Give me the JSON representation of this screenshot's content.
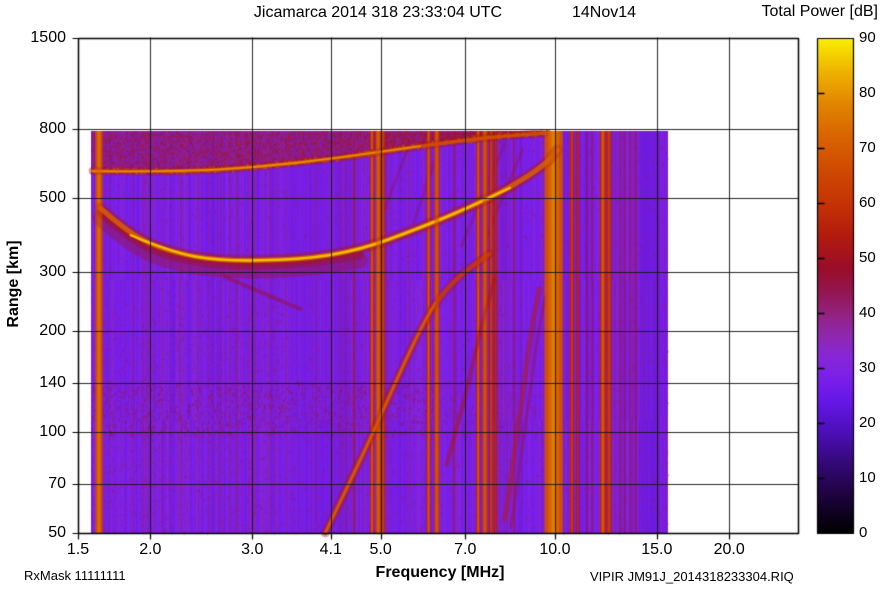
{
  "header": {
    "title": "Jicamarca 2014 318 23:33:04 UTC",
    "date_label": "14Nov14",
    "colorbar_title": "Total Power [dB]"
  },
  "footer": {
    "rx_mask": "RxMask 11111111",
    "xlabel": "Frequency [MHz]",
    "file_label": "VIPIR  JM91J_2014318233304.RIQ"
  },
  "ylabel": "Range [km]",
  "chart_data": {
    "type": "heatmap",
    "title": "Jicamarca 2014 318 23:33:04 UTC",
    "date_label": "14Nov14",
    "xlabel": "Frequency [MHz]",
    "ylabel": "Range [km]",
    "colorbar_label": "Total Power [dB]",
    "x_scale": "log",
    "y_scale": "log",
    "xlim": [
      1.5,
      26.3
    ],
    "ylim": [
      50,
      1500
    ],
    "grid": true,
    "x_ticks": [
      {
        "label": "1.5",
        "value": 1.5
      },
      {
        "label": "2.0",
        "value": 2.0
      },
      {
        "label": "3.0",
        "value": 3.0
      },
      {
        "label": "4.1",
        "value": 4.1
      },
      {
        "label": "5.0",
        "value": 5.0
      },
      {
        "label": "7.0",
        "value": 7.0
      },
      {
        "label": "10.0",
        "value": 10.0
      },
      {
        "label": "15.0",
        "value": 15.0
      },
      {
        "label": "20.0",
        "value": 20.0
      }
    ],
    "y_ticks": [
      {
        "label": "1500",
        "value": 1500
      },
      {
        "label": "800",
        "value": 800
      },
      {
        "label": "500",
        "value": 500
      },
      {
        "label": "300",
        "value": 300
      },
      {
        "label": "200",
        "value": 200
      },
      {
        "label": "140",
        "value": 140
      },
      {
        "label": "100",
        "value": 100
      },
      {
        "label": "70",
        "value": 70
      },
      {
        "label": "50",
        "value": 50
      }
    ],
    "colorbar": {
      "min": 0,
      "max": 90,
      "tick_labels": [
        "90",
        "80",
        "70",
        "60",
        "50",
        "40",
        "30",
        "20",
        "10",
        "0"
      ],
      "tick_values": [
        90,
        80,
        70,
        60,
        50,
        40,
        30,
        20,
        10,
        0
      ],
      "stops": [
        {
          "v": 0,
          "c": "#000000"
        },
        {
          "v": 6,
          "c": "#1a0336"
        },
        {
          "v": 12,
          "c": "#320870"
        },
        {
          "v": 18,
          "c": "#4a0fb4"
        },
        {
          "v": 24,
          "c": "#6617e8"
        },
        {
          "v": 28,
          "c": "#7a1fea"
        },
        {
          "v": 32,
          "c": "#8727d8"
        },
        {
          "v": 36,
          "c": "#8f28ae"
        },
        {
          "v": 40,
          "c": "#93227e"
        },
        {
          "v": 44,
          "c": "#941650"
        },
        {
          "v": 48,
          "c": "#9a0d2a"
        },
        {
          "v": 54,
          "c": "#b31b0e"
        },
        {
          "v": 60,
          "c": "#c63305"
        },
        {
          "v": 66,
          "c": "#cf4a02"
        },
        {
          "v": 72,
          "c": "#d96400"
        },
        {
          "v": 78,
          "c": "#e28500"
        },
        {
          "v": 84,
          "c": "#f0b400"
        },
        {
          "v": 90,
          "c": "#f9ef00"
        }
      ]
    },
    "data_extent": {
      "f_min": 1.58,
      "f_max": 15.7,
      "r_min": 50,
      "r_max": 792
    },
    "background_db": 28,
    "bands": [
      {
        "name": "spread-f-band",
        "f_min": 1.58,
        "f_max": 9.8,
        "r_top": 792,
        "db": 42,
        "lower_edge": [
          [
            1.59,
            601
          ],
          [
            2.25,
            598
          ],
          [
            3.08,
            618
          ],
          [
            4.24,
            658
          ],
          [
            5.85,
            714
          ],
          [
            8.03,
            765
          ],
          [
            9.6,
            779
          ]
        ]
      },
      {
        "name": "e-region-band",
        "f_min": 1.58,
        "f_max": 6.3,
        "r_min": 98,
        "r_max": 142,
        "db": 40
      }
    ],
    "traces": [
      {
        "name": "spread-f-lower-edge-arc",
        "db": 80,
        "points": [
          [
            1.59,
            601
          ],
          [
            2.25,
            598
          ],
          [
            3.08,
            618
          ],
          [
            4.24,
            658
          ],
          [
            5.85,
            714
          ],
          [
            8.03,
            765
          ],
          [
            9.6,
            779
          ]
        ]
      },
      {
        "name": "f-region-main-trace",
        "db": 86,
        "points": [
          [
            1.64,
            466
          ],
          [
            1.85,
            387
          ],
          [
            2.16,
            345
          ],
          [
            2.64,
            324
          ],
          [
            3.63,
            327
          ],
          [
            4.6,
            349
          ],
          [
            5.85,
            407
          ],
          [
            7.13,
            469
          ],
          [
            8.36,
            536
          ],
          [
            9.6,
            627
          ],
          [
            10.1,
            694
          ]
        ]
      },
      {
        "name": "oblique-trace",
        "db": 72,
        "points": [
          [
            4.01,
            50
          ],
          [
            4.44,
            72
          ],
          [
            4.92,
            105
          ],
          [
            5.42,
            153
          ],
          [
            5.85,
            202
          ],
          [
            6.21,
            243
          ],
          [
            6.84,
            294
          ],
          [
            7.7,
            340
          ]
        ]
      },
      {
        "name": "oblique-faint-1",
        "db": 52,
        "points": [
          [
            6.5,
            80
          ],
          [
            6.98,
            124
          ],
          [
            7.43,
            202
          ],
          [
            7.86,
            285
          ]
        ]
      },
      {
        "name": "oblique-faint-2",
        "db": 54,
        "points": [
          [
            8.2,
            55
          ],
          [
            8.68,
            109
          ],
          [
            9.1,
            202
          ],
          [
            9.4,
            268
          ]
        ]
      },
      {
        "name": "sub-trace-streak",
        "db": 48,
        "points": [
          [
            2.7,
            290
          ],
          [
            3.63,
            233
          ]
        ]
      }
    ],
    "streaks": [
      {
        "name": "upper-streak-1",
        "db": 48,
        "points": [
          [
            5.6,
            720
          ],
          [
            5.0,
            430
          ]
        ]
      },
      {
        "name": "upper-streak-2",
        "db": 48,
        "points": [
          [
            6.3,
            700
          ],
          [
            5.7,
            420
          ]
        ]
      },
      {
        "name": "upper-streak-3",
        "db": 48,
        "points": [
          [
            8.2,
            730
          ],
          [
            6.9,
            360
          ]
        ]
      },
      {
        "name": "upper-streak-4",
        "db": 48,
        "points": [
          [
            8.8,
            700
          ],
          [
            7.6,
            380
          ]
        ]
      }
    ],
    "rfi_stripes": [
      {
        "f": 1.63,
        "w": 7,
        "db": 70
      },
      {
        "f": 4.35,
        "w": 2,
        "db": 42
      },
      {
        "f": 4.5,
        "w": 3,
        "db": 44
      },
      {
        "f": 4.83,
        "w": 4,
        "db": 64
      },
      {
        "f": 4.95,
        "w": 5,
        "db": 68
      },
      {
        "f": 5.05,
        "w": 4,
        "db": 62
      },
      {
        "f": 6.05,
        "w": 4,
        "db": 64
      },
      {
        "f": 6.25,
        "w": 5,
        "db": 66
      },
      {
        "f": 6.7,
        "w": 2,
        "db": 52
      },
      {
        "f": 7.37,
        "w": 4,
        "db": 64
      },
      {
        "f": 7.57,
        "w": 5,
        "db": 66
      },
      {
        "f": 7.76,
        "w": 4,
        "db": 62
      },
      {
        "f": 7.9,
        "w": 3,
        "db": 58
      },
      {
        "f": 8.5,
        "w": 2,
        "db": 52
      },
      {
        "f": 9.95,
        "w": 18,
        "db": 72
      },
      {
        "f": 10.7,
        "w": 4,
        "db": 62
      },
      {
        "f": 10.95,
        "w": 3,
        "db": 58
      },
      {
        "f": 11.35,
        "w": 2,
        "db": 48
      },
      {
        "f": 11.6,
        "w": 2,
        "db": 46
      },
      {
        "f": 12.1,
        "w": 6,
        "db": 64
      },
      {
        "f": 12.4,
        "w": 5,
        "db": 62
      },
      {
        "f": 12.97,
        "w": 2,
        "db": 52
      },
      {
        "f": 13.2,
        "w": 2,
        "db": 50
      },
      {
        "f": 13.5,
        "w": 2,
        "db": 52
      },
      {
        "f": 13.8,
        "w": 2,
        "db": 50
      }
    ],
    "tint_zones": [
      {
        "f_min": 3.5,
        "f_max": 4.6,
        "db": 24,
        "alpha": 0.18
      },
      {
        "f_min": 10.3,
        "f_max": 11.3,
        "db": 26,
        "alpha": 0.2
      },
      {
        "f_min": 14.0,
        "f_max": 15.2,
        "db": 22,
        "alpha": 0.35
      }
    ]
  }
}
